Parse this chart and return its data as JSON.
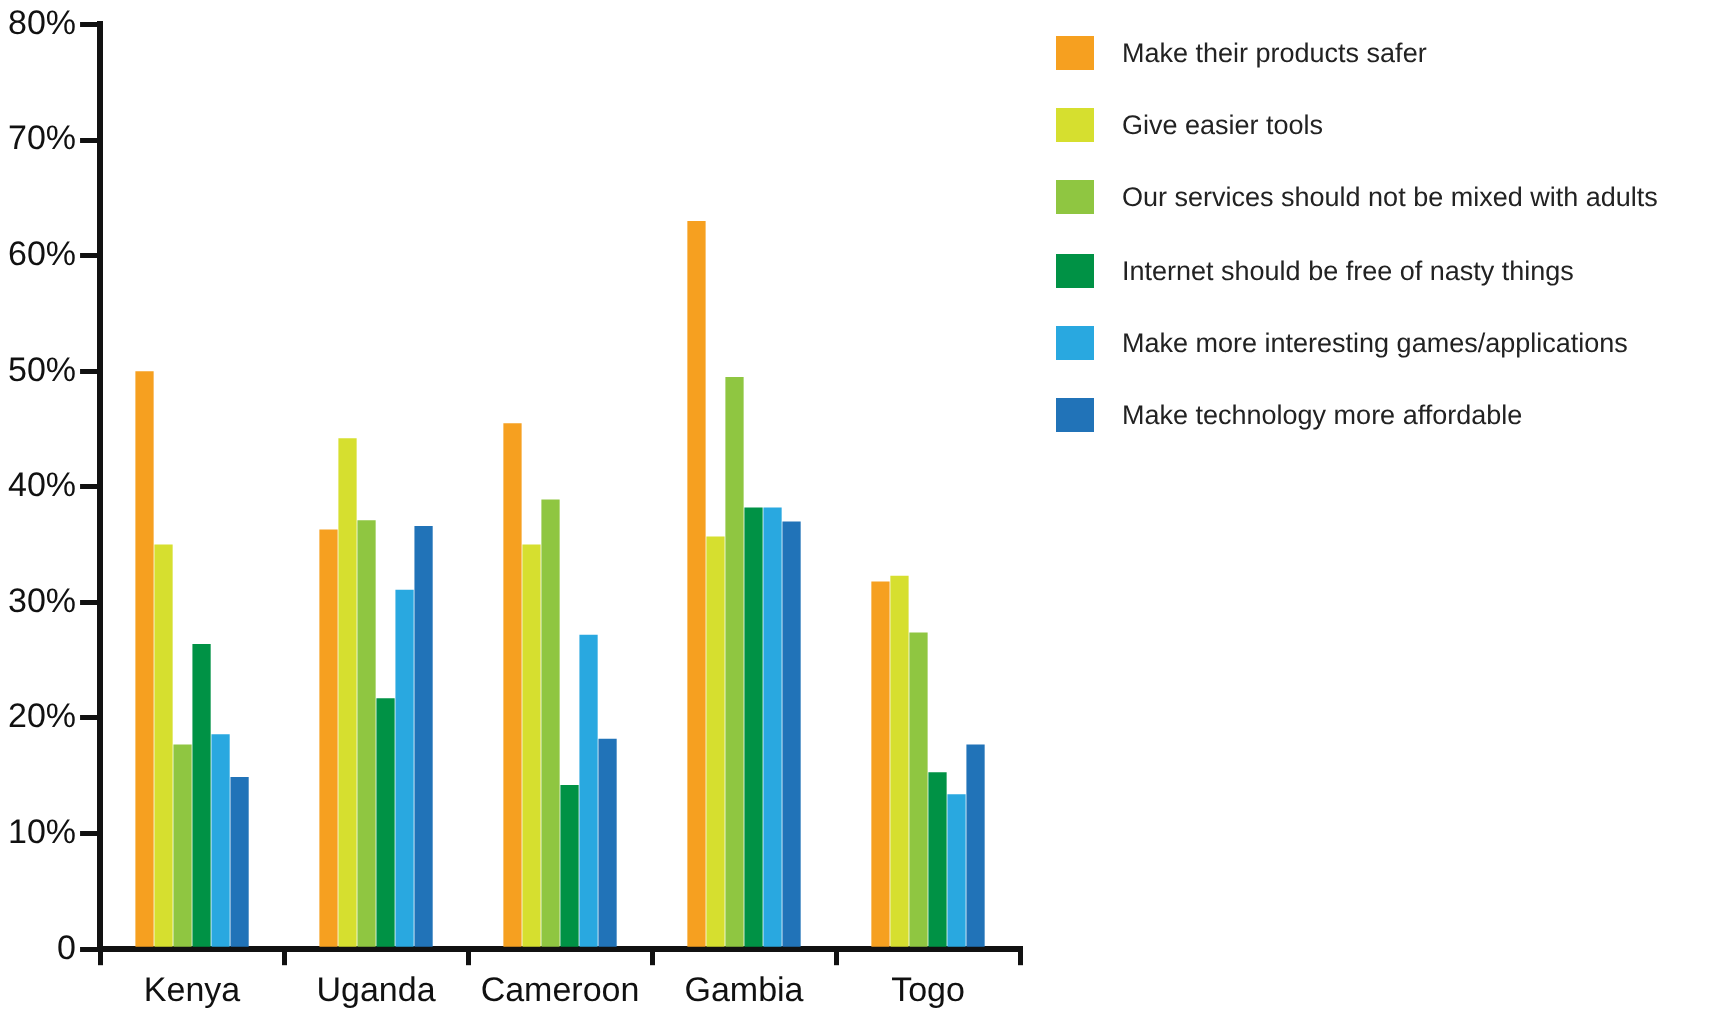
{
  "chart_data": {
    "type": "bar",
    "categories": [
      "Kenya",
      "Uganda",
      "Cameroon",
      "Gambia",
      "Togo"
    ],
    "series": [
      {
        "name": "Make their products safer",
        "color": "#f6a020",
        "values": [
          50,
          36.3,
          45.5,
          63,
          31.8
        ]
      },
      {
        "name": "Give easier tools",
        "color": "#d6df2f",
        "values": [
          35,
          44.2,
          35,
          35.7,
          32.3
        ]
      },
      {
        "name": "Our services should not be mixed with adults",
        "color": "#8fc641",
        "values": [
          17.7,
          37.1,
          38.9,
          49.5,
          27.4
        ]
      },
      {
        "name": "Internet should be free of nasty things",
        "color": "#009245",
        "values": [
          26.4,
          21.7,
          14.2,
          38.2,
          15.3
        ]
      },
      {
        "name": "Make more interesting games/applications",
        "color": "#29a8e0",
        "values": [
          18.6,
          31.1,
          27.2,
          38.2,
          13.4
        ]
      },
      {
        "name": "Make technology more affordable",
        "color": "#2173b8",
        "values": [
          14.9,
          36.6,
          18.2,
          37,
          17.7
        ]
      }
    ],
    "ylim": [
      0,
      80
    ],
    "yticks": [
      {
        "value": 0,
        "label": "0"
      },
      {
        "value": 10,
        "label": "10%"
      },
      {
        "value": 20,
        "label": "20%"
      },
      {
        "value": 30,
        "label": "30%"
      },
      {
        "value": 40,
        "label": "40%"
      },
      {
        "value": 50,
        "label": "50%"
      },
      {
        "value": 60,
        "label": "60%"
      },
      {
        "value": 70,
        "label": "70%"
      },
      {
        "value": 80,
        "label": "80%"
      }
    ],
    "grid": false,
    "legend": "right"
  }
}
